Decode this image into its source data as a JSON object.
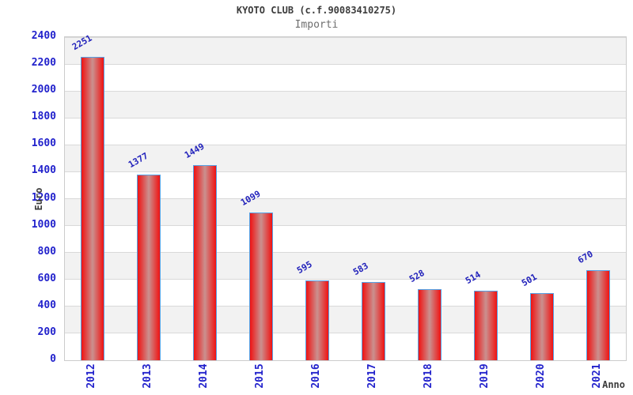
{
  "chart_data": {
    "type": "bar",
    "title": "KYOTO CLUB (c.f.90083410275)",
    "subtitle": "Importi",
    "xlabel": "Anno",
    "ylabel": "Euro",
    "categories": [
      "2012",
      "2013",
      "2014",
      "2015",
      "2016",
      "2017",
      "2018",
      "2019",
      "2020",
      "2021"
    ],
    "values": [
      2251,
      1377,
      1449,
      1099,
      595,
      583,
      528,
      514,
      501,
      670
    ],
    "ylim": [
      0,
      2400
    ],
    "ytick_step": 200,
    "yticks": [
      0,
      200,
      400,
      600,
      800,
      1000,
      1200,
      1400,
      1600,
      1800,
      2000,
      2200,
      2400
    ],
    "grid": "horizontal gridlines with alternating background bands",
    "legend_position": "none",
    "value_labels": "above bars, rotated 30 degrees",
    "xtick_rotation": -90
  },
  "colors": {
    "background": "#ffffff",
    "title_text": "#3c3c3c",
    "subtitle_text": "#6e6e6e",
    "axis_title_text": "#3c3c3c",
    "tick_text": "#2222cc",
    "value_label_text": "#2222bb",
    "bar_edge": "#f01212",
    "bar_center": "#ca918f",
    "bar_border": "#55a2e6",
    "band_gray": "#f2f2f2",
    "gridline": "#d9d9d9",
    "frame": "#cccccc"
  }
}
